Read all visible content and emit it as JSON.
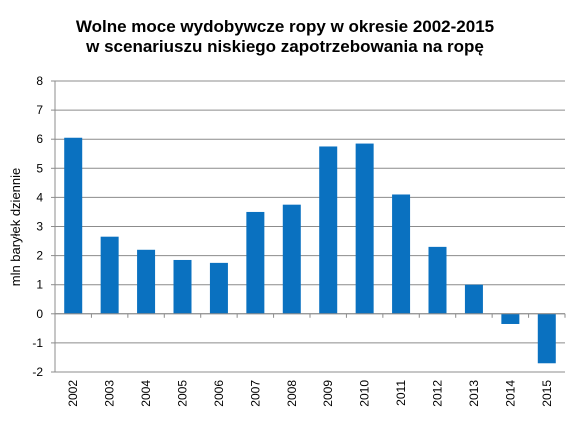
{
  "chart_data": {
    "type": "bar",
    "title_line1": "Wolne moce wydobywcze ropy w okresie 2002-2015",
    "title_line2": "w scenariuszu niskiego zapotrzebowania na ropę",
    "ylabel": "mln baryłek dziennie",
    "xlabel": "",
    "ylim": [
      -2,
      8
    ],
    "yticks": [
      "-2",
      "-1",
      "0",
      "1",
      "2",
      "3",
      "4",
      "5",
      "6",
      "7",
      "8"
    ],
    "categories": [
      "2002",
      "2003",
      "2004",
      "2005",
      "2006",
      "2007",
      "2008",
      "2009",
      "2010",
      "2011",
      "2012",
      "2013",
      "2014",
      "2015"
    ],
    "values": [
      6.05,
      2.65,
      2.2,
      1.85,
      1.75,
      3.5,
      3.75,
      5.75,
      5.85,
      4.1,
      2.3,
      1.0,
      -0.35,
      -1.7
    ],
    "bar_color": "#0a71c0",
    "grid": "horizontal",
    "legend": "none"
  }
}
